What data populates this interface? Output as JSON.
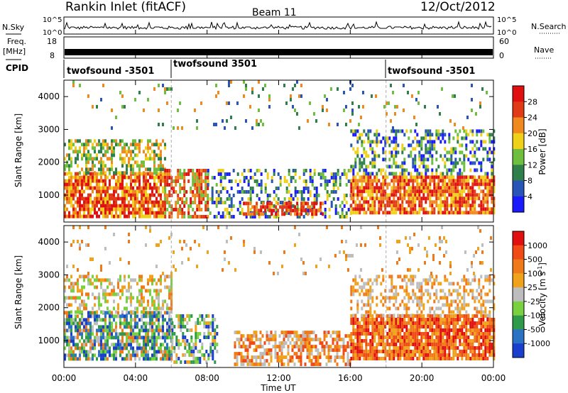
{
  "header": {
    "site": "Rankin Inlet (fitACF)",
    "beam": "Beam 11",
    "date": "12/Oct/2012"
  },
  "top_panels": {
    "nsky_label": "N.Sky",
    "nsky_ticks": [
      "10^5",
      "10^0"
    ],
    "nsearch_label": "N.Search",
    "freq_label": "Freq.",
    "freq_unit": "[MHz]",
    "freq_ticks": [
      "18",
      "8"
    ],
    "nave_ticks": [
      "60",
      "0"
    ],
    "nave_label": "Nave",
    "cpid_label": "CPID",
    "cpid_segments": [
      {
        "label": "twofsound -3501",
        "start_hour": 0
      },
      {
        "label": "twofsound 3501",
        "start_hour": 6
      },
      {
        "label": "twofsound -3501",
        "start_hour": 18
      }
    ]
  },
  "chart_data": [
    {
      "type": "heatmap",
      "name": "power",
      "ylabel": "Slant Range [km]",
      "xlabel": "",
      "xlim": [
        0,
        24
      ],
      "ylim": [
        180,
        4500
      ],
      "yticks": [
        "1000",
        "2000",
        "3000",
        "4000"
      ],
      "colorbar": {
        "label": "Power [dB]",
        "ticks": [
          "4",
          "8",
          "12",
          "16",
          "20",
          "24",
          "28"
        ],
        "colors": [
          "#1a1aff",
          "#2a55b8",
          "#2f7f4a",
          "#6fbf3f",
          "#f0d11a",
          "#f08a1f",
          "#e03a16",
          "#e01010"
        ]
      },
      "bands": [
        {
          "t0": 0,
          "t1": 5.6,
          "r0": 400,
          "r1": 1700,
          "density": 0.8,
          "colors": [
            "#e01010",
            "#e03a16",
            "#f08a1f",
            "#f0d11a"
          ]
        },
        {
          "t0": 0,
          "t1": 5.6,
          "r0": 1700,
          "r1": 2700,
          "density": 0.55,
          "colors": [
            "#f0d11a",
            "#6fbf3f",
            "#2f7f4a",
            "#f08a1f"
          ]
        },
        {
          "t0": 5.6,
          "t1": 8,
          "r0": 300,
          "r1": 1800,
          "density": 0.65,
          "colors": [
            "#e01010",
            "#e03a16",
            "#f08a1f",
            "#6fbf3f"
          ]
        },
        {
          "t0": 8,
          "t1": 16,
          "r0": 300,
          "r1": 1800,
          "density": 0.35,
          "colors": [
            "#1a1aff",
            "#2a55b8",
            "#2f7f4a",
            "#6fbf3f",
            "#f0d11a"
          ]
        },
        {
          "t0": 10,
          "t1": 14.5,
          "r0": 400,
          "r1": 800,
          "density": 0.6,
          "colors": [
            "#e03a16",
            "#f08a1f",
            "#e01010"
          ]
        },
        {
          "t0": 16,
          "t1": 24,
          "r0": 500,
          "r1": 1600,
          "density": 0.85,
          "colors": [
            "#e01010",
            "#e03a16",
            "#f08a1f",
            "#f0d11a"
          ]
        },
        {
          "t0": 16,
          "t1": 24,
          "r0": 1600,
          "r1": 3000,
          "density": 0.4,
          "colors": [
            "#2f7f4a",
            "#6fbf3f",
            "#1a1aff",
            "#2a55b8",
            "#f0d11a"
          ]
        },
        {
          "t0": 0,
          "t1": 24,
          "r0": 3000,
          "r1": 4500,
          "density": 0.05,
          "colors": [
            "#2a55b8",
            "#6fbf3f",
            "#2f7f4a",
            "#f08a1f"
          ]
        }
      ]
    },
    {
      "type": "heatmap",
      "name": "velocity",
      "ylabel": "Slant Range [km]",
      "xlabel": "Time UT",
      "xlim": [
        0,
        24
      ],
      "ylim": [
        180,
        4500
      ],
      "xticks": [
        "00:00",
        "04:00",
        "08:00",
        "12:00",
        "16:00",
        "20:00",
        "00:00"
      ],
      "yticks": [
        "1000",
        "2000",
        "3000",
        "4000"
      ],
      "colorbar": {
        "label": "Velocity [m s",
        "label_sup": "-1",
        "label_end": "]",
        "ticks": [
          "1000",
          "500",
          "100",
          "25",
          "-25",
          "-100",
          "-500",
          "-1000"
        ],
        "colors": [
          "#1a3fcc",
          "#2a72c4",
          "#2f9a4a",
          "#7ad13f",
          "#bdbdbd",
          "#f0a21a",
          "#f07a1a",
          "#f04a16",
          "#e01010"
        ]
      },
      "bands": [
        {
          "t0": 0,
          "t1": 6,
          "r0": 400,
          "r1": 1900,
          "density": 0.75,
          "colors": [
            "#1a3fcc",
            "#2a72c4",
            "#2f9a4a",
            "#7ad13f",
            "#bdbdbd",
            "#f07a1a"
          ]
        },
        {
          "t0": 0,
          "t1": 6,
          "r0": 1900,
          "r1": 3000,
          "density": 0.45,
          "colors": [
            "#bdbdbd",
            "#f0a21a",
            "#7ad13f",
            "#f07a1a"
          ]
        },
        {
          "t0": 6,
          "t1": 8.5,
          "r0": 300,
          "r1": 1800,
          "density": 0.55,
          "colors": [
            "#2f9a4a",
            "#7ad13f",
            "#bdbdbd",
            "#f0a21a",
            "#1a3fcc"
          ]
        },
        {
          "t0": 9.5,
          "t1": 16,
          "r0": 300,
          "r1": 1300,
          "density": 0.6,
          "colors": [
            "#f0a21a",
            "#f07a1a",
            "#f04a16",
            "#bdbdbd"
          ]
        },
        {
          "t0": 16,
          "t1": 24,
          "r0": 400,
          "r1": 1800,
          "density": 0.85,
          "colors": [
            "#f04a16",
            "#f07a1a",
            "#e01010",
            "#f0a21a"
          ]
        },
        {
          "t0": 16,
          "t1": 24,
          "r0": 1800,
          "r1": 3000,
          "density": 0.4,
          "colors": [
            "#f0a21a",
            "#bdbdbd",
            "#f07a1a"
          ]
        },
        {
          "t0": 0,
          "t1": 24,
          "r0": 3000,
          "r1": 4500,
          "density": 0.05,
          "colors": [
            "#f0a21a",
            "#bdbdbd",
            "#f07a1a"
          ]
        }
      ]
    }
  ]
}
